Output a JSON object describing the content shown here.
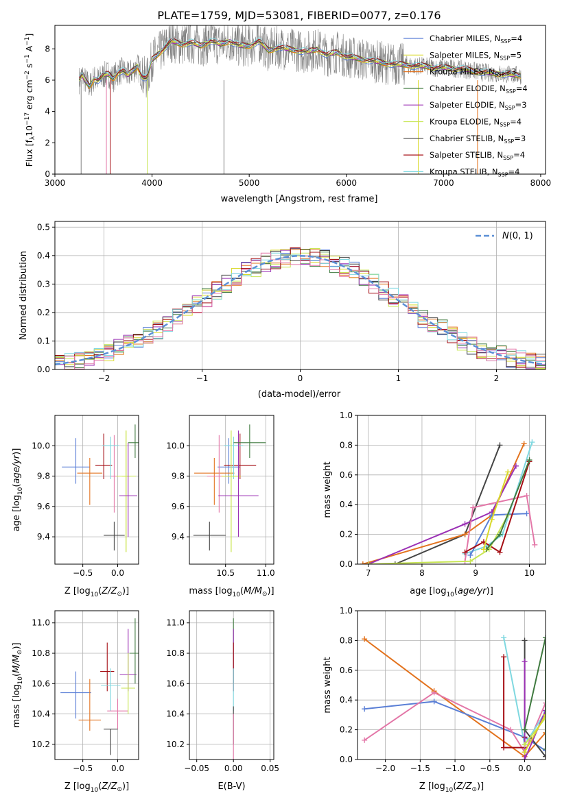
{
  "figure_title": "PLATE=1759, MJD=53081, FIBERID=0077, z=0.176",
  "colors": {
    "chabrier_miles": "#5a7fd6",
    "salpeter_miles": "#d9d92a",
    "kroupa_miles": "#e3731e",
    "chabrier_elodie": "#3f7a3f",
    "salpeter_elodie": "#9b30b5",
    "kroupa_elodie": "#c8e654",
    "chabrier_stelib": "#444444",
    "salpeter_stelib": "#a50f15",
    "kroupa_stelib": "#7fd8e0",
    "extra_pink": "#e377a8",
    "data_grey": "#808080",
    "gauss": "#5b8fd6"
  },
  "chart_data": [
    {
      "id": "spectrum",
      "type": "line",
      "xlabel": "wavelength [Angstrom, rest frame]",
      "ylabel": "Flux [f_λ 10^-17 erg cm^-2 s^-1 A^-1]",
      "xlim": [
        3000,
        8050
      ],
      "ylim": [
        0,
        9.5
      ],
      "xticks": [
        "3000",
        "4000",
        "5000",
        "6000",
        "7000",
        "8000"
      ],
      "yticks": [
        "0",
        "2",
        "4",
        "6",
        "8"
      ],
      "legend_position": "right",
      "legend": [
        {
          "label": "Chabrier MILES, N",
          "sub": "SSP",
          "tail": "=4"
        },
        {
          "label": "Salpeter MILES, N",
          "sub": "SSP",
          "tail": "=5"
        },
        {
          "label": "Kroupa MILES, N",
          "sub": "SSP",
          "tail": "=3"
        },
        {
          "label": "Chabrier ELODIE, N",
          "sub": "SSP",
          "tail": "=4"
        },
        {
          "label": "Salpeter ELODIE, N",
          "sub": "SSP",
          "tail": "=3"
        },
        {
          "label": "Kroupa ELODIE, N",
          "sub": "SSP",
          "tail": "=4"
        },
        {
          "label": "Chabrier STELIB, N",
          "sub": "SSP",
          "tail": "=3"
        },
        {
          "label": "Salpeter STELIB, N",
          "sub": "SSP",
          "tail": "=4"
        },
        {
          "label": "Kroupa STELIB, N",
          "sub": "SSP",
          "tail": "=4"
        }
      ],
      "model_curve": {
        "x": [
          3240,
          3280,
          3320,
          3360,
          3400,
          3450,
          3500,
          3550,
          3600,
          3650,
          3700,
          3750,
          3800,
          3850,
          3900,
          3950,
          4000,
          4100,
          4200,
          4300,
          4400,
          4500,
          4600,
          4700,
          4800,
          4900,
          5000,
          5100,
          5200,
          5300,
          5400,
          5500,
          5600,
          5700,
          5800,
          5900,
          6000,
          6100,
          6200,
          6300,
          6400,
          6500,
          6600,
          6700,
          6800,
          6900,
          7000,
          7200,
          7400,
          7600,
          7800
        ],
        "y": [
          5.9,
          6.3,
          5.9,
          5.6,
          6.1,
          6.0,
          6.3,
          6.4,
          6.1,
          6.5,
          6.6,
          6.3,
          6.6,
          6.9,
          6.2,
          6.1,
          7.3,
          7.9,
          8.5,
          8.3,
          8.4,
          8.2,
          8.5,
          8.3,
          8.5,
          8.2,
          8.2,
          8.5,
          7.9,
          8.1,
          8.0,
          7.9,
          7.8,
          8.0,
          7.6,
          7.8,
          7.5,
          7.4,
          7.3,
          7.2,
          7.1,
          7.0,
          7.0,
          6.9,
          6.9,
          6.8,
          6.8,
          6.7,
          6.5,
          6.4,
          6.3
        ]
      }
    },
    {
      "id": "residuals",
      "type": "line",
      "xlabel": "(data-model)/error",
      "ylabel": "Normed distribution",
      "xlim": [
        -2.5,
        2.5
      ],
      "ylim": [
        0,
        0.52
      ],
      "xticks": [
        "−2",
        "−1",
        "0",
        "1",
        "2"
      ],
      "yticks": [
        "0.0",
        "0.1",
        "0.2",
        "0.3",
        "0.4",
        "0.5"
      ],
      "legend": "N(0,1)",
      "legend_position": "top-right",
      "grid": true
    },
    {
      "id": "age_vs_Z",
      "type": "scatter",
      "xlabel": "Z [log10(Z/Z⊙)]",
      "ylabel": "age [log10(age/yr)]",
      "xlim": [
        -0.9,
        0.3
      ],
      "ylim": [
        9.22,
        10.2
      ],
      "xticks": [
        "−0.5",
        "0.0"
      ],
      "yticks": [
        "9.4",
        "9.6",
        "9.8",
        "10.0"
      ],
      "grid": true,
      "points": [
        {
          "series": "chabrier_miles",
          "x": -0.6,
          "y": 9.86,
          "xerr": 0.2,
          "yerr": [
            9.75,
            10.05
          ]
        },
        {
          "series": "kroupa_miles",
          "x": -0.4,
          "y": 9.82,
          "xerr": 0.18,
          "yerr": [
            9.61,
            9.92
          ]
        },
        {
          "series": "salpeter_stelib",
          "x": -0.2,
          "y": 9.87,
          "xerr": 0.12,
          "yerr": [
            9.78,
            10.08
          ]
        },
        {
          "series": "extra_pink",
          "x": -0.05,
          "y": 9.8,
          "xerr": 0.06,
          "yerr": [
            9.56,
            10.07
          ]
        },
        {
          "series": "kroupa_stelib",
          "x": -0.1,
          "y": 10.0,
          "xerr": 0.12,
          "yerr": [
            9.78,
            10.06
          ]
        },
        {
          "series": "salpeter_miles",
          "x": 0.12,
          "y": 9.8,
          "xerr": 0.06,
          "yerr": [
            9.3,
            10.1
          ]
        },
        {
          "series": "kroupa_elodie",
          "x": 0.12,
          "y": 9.8,
          "xerr": 0.14,
          "yerr": [
            9.3,
            10.1
          ]
        },
        {
          "series": "salpeter_elodie",
          "x": 0.15,
          "y": 9.67,
          "xerr": 0.13,
          "yerr": [
            9.4,
            10.02
          ]
        },
        {
          "series": "chabrier_elodie",
          "x": 0.25,
          "y": 10.02,
          "xerr": 0.1,
          "yerr": [
            9.92,
            10.14
          ]
        },
        {
          "series": "chabrier_stelib",
          "x": -0.05,
          "y": 9.41,
          "xerr": 0.15,
          "yerr": [
            9.31,
            9.5
          ]
        }
      ]
    },
    {
      "id": "age_vs_mass",
      "type": "scatter",
      "xlabel": "mass [log10(M/M⊙)]",
      "ylabel": "",
      "xlim": [
        10.05,
        11.1
      ],
      "ylim": [
        9.22,
        10.2
      ],
      "xticks": [
        "10.5",
        "11.0"
      ],
      "yticks": [
        "9.4",
        "9.6",
        "9.8",
        "10.0"
      ],
      "grid": true,
      "points": [
        {
          "series": "chabrier_miles",
          "x": 10.54,
          "y": 9.86,
          "xerr": 0.14,
          "yerr": [
            9.75,
            10.05
          ]
        },
        {
          "series": "kroupa_miles",
          "x": 10.36,
          "y": 9.82,
          "xerr": 0.25,
          "yerr": [
            9.61,
            9.92
          ]
        },
        {
          "series": "salpeter_stelib",
          "x": 10.68,
          "y": 9.87,
          "xerr": 0.2,
          "yerr": [
            9.78,
            10.08
          ]
        },
        {
          "series": "extra_pink",
          "x": 10.42,
          "y": 9.8,
          "xerr": 0.15,
          "yerr": [
            9.56,
            10.07
          ]
        },
        {
          "series": "kroupa_stelib",
          "x": 10.6,
          "y": 10.0,
          "xerr": 0.12,
          "yerr": [
            9.78,
            10.06
          ]
        },
        {
          "series": "salpeter_miles",
          "x": 10.57,
          "y": 9.8,
          "xerr": 0.12,
          "yerr": [
            9.3,
            10.1
          ]
        },
        {
          "series": "kroupa_elodie",
          "x": 10.57,
          "y": 9.8,
          "xerr": 0.1,
          "yerr": [
            9.3,
            10.1
          ]
        },
        {
          "series": "salpeter_elodie",
          "x": 10.66,
          "y": 9.67,
          "xerr": 0.25,
          "yerr": [
            9.4,
            10.1
          ]
        },
        {
          "series": "chabrier_elodie",
          "x": 10.8,
          "y": 10.02,
          "xerr": 0.2,
          "yerr": [
            9.92,
            10.14
          ]
        },
        {
          "series": "chabrier_stelib",
          "x": 10.3,
          "y": 9.41,
          "xerr": 0.2,
          "yerr": [
            9.31,
            9.5
          ]
        }
      ]
    },
    {
      "id": "mass_weight_vs_age",
      "type": "line",
      "xlabel": "age [log10(age/yr)]",
      "ylabel": "mass weight",
      "xlim": [
        6.8,
        10.3
      ],
      "ylim": [
        0,
        1.0
      ],
      "xticks": [
        "7",
        "8",
        "9",
        "10"
      ],
      "yticks": [
        "0.0",
        "0.2",
        "0.4",
        "0.6",
        "0.8",
        "1.0"
      ],
      "grid": true,
      "series": [
        {
          "name": "chabrier_stelib",
          "x": [
            7.5,
            8.8,
            9.45
          ],
          "y": [
            0.0,
            0.2,
            0.8
          ]
        },
        {
          "name": "kroupa_miles",
          "x": [
            6.9,
            8.8,
            9.3,
            9.9
          ],
          "y": [
            0.0,
            0.2,
            0.33,
            0.81
          ]
        },
        {
          "name": "salpeter_elodie",
          "x": [
            7.0,
            8.8,
            9.3,
            9.75
          ],
          "y": [
            0.0,
            0.27,
            0.35,
            0.66
          ]
        },
        {
          "name": "kroupa_stelib",
          "x": [
            8.8,
            9.2,
            9.5,
            10.05
          ],
          "y": [
            0.07,
            0.12,
            0.2,
            0.82
          ]
        },
        {
          "name": "chabrier_miles",
          "x": [
            8.9,
            9.3,
            9.95
          ],
          "y": [
            0.06,
            0.33,
            0.34
          ]
        },
        {
          "name": "extra_pink",
          "x": [
            8.8,
            8.95,
            9.95,
            10.1
          ],
          "y": [
            0.02,
            0.38,
            0.46,
            0.13
          ]
        },
        {
          "name": "salpeter_stelib",
          "x": [
            8.8,
            9.15,
            9.45,
            10.0
          ],
          "y": [
            0.08,
            0.15,
            0.08,
            0.69
          ]
        },
        {
          "name": "kroupa_elodie",
          "x": [
            7.0,
            8.9,
            9.25,
            9.6
          ],
          "y": [
            0.0,
            0.02,
            0.1,
            0.33
          ]
        },
        {
          "name": "chabrier_elodie",
          "x": [
            9.2,
            9.45,
            10.0
          ],
          "y": [
            0.1,
            0.2,
            0.7
          ]
        },
        {
          "name": "salpeter_miles",
          "x": [
            9.15,
            9.3,
            9.6
          ],
          "y": [
            0.1,
            0.3,
            0.62
          ]
        }
      ]
    },
    {
      "id": "mass_vs_Z",
      "type": "scatter",
      "xlabel": "Z [log10(Z/Z⊙)]",
      "ylabel": "mass [log10(M/M⊙)]",
      "xlim": [
        -0.9,
        0.3
      ],
      "ylim": [
        10.1,
        11.08
      ],
      "xticks": [
        "−0.5",
        "0.0"
      ],
      "yticks": [
        "10.2",
        "10.4",
        "10.6",
        "10.8",
        "11.0"
      ],
      "grid": true,
      "points": [
        {
          "series": "chabrier_miles",
          "x": -0.6,
          "y": 10.54,
          "xerr": 0.22,
          "yerr": [
            10.37,
            10.68
          ]
        },
        {
          "series": "kroupa_miles",
          "x": -0.4,
          "y": 10.36,
          "xerr": 0.16,
          "yerr": [
            10.29,
            10.63
          ]
        },
        {
          "series": "salpeter_stelib",
          "x": -0.15,
          "y": 10.68,
          "xerr": 0.1,
          "yerr": [
            10.55,
            10.87
          ]
        },
        {
          "series": "kroupa_stelib",
          "x": -0.1,
          "y": 10.59,
          "xerr": 0.14,
          "yerr": [
            10.42,
            10.7
          ]
        },
        {
          "series": "extra_pink",
          "x": 0.0,
          "y": 10.42,
          "xerr": 0.15,
          "yerr": [
            10.3,
            10.5
          ]
        },
        {
          "series": "salpeter_elodie",
          "x": 0.15,
          "y": 10.66,
          "xerr": 0.12,
          "yerr": [
            10.55,
            10.96
          ]
        },
        {
          "series": "kroupa_elodie",
          "x": 0.15,
          "y": 10.57,
          "xerr": 0.1,
          "yerr": [
            10.4,
            10.8
          ]
        },
        {
          "series": "chabrier_elodie",
          "x": 0.25,
          "y": 10.8,
          "xerr": 0.08,
          "yerr": [
            10.6,
            11.03
          ]
        },
        {
          "series": "chabrier_stelib",
          "x": -0.1,
          "y": 10.3,
          "xerr": 0.1,
          "yerr": [
            10.13,
            10.3
          ]
        }
      ]
    },
    {
      "id": "mass_vs_ebv",
      "type": "scatter",
      "xlabel": "E(B-V)",
      "ylabel": "",
      "xlim": [
        -0.06,
        0.055
      ],
      "ylim": [
        10.1,
        11.08
      ],
      "xticks": [
        "−0.05",
        "0.00",
        "0.05"
      ],
      "yticks": [
        "10.2",
        "10.4",
        "10.6",
        "10.8",
        "11.0"
      ],
      "grid": true,
      "points": [
        {
          "series": "chabrier_elodie",
          "x": 0.0,
          "y": 10.8,
          "xerr": 0.0,
          "yerr": [
            10.6,
            11.03
          ]
        },
        {
          "series": "salpeter_elodie",
          "x": 0.0,
          "y": 10.7,
          "xerr": 0.0,
          "yerr": [
            10.55,
            10.96
          ]
        },
        {
          "series": "salpeter_stelib",
          "x": 0.0,
          "y": 10.68,
          "xerr": 0.0,
          "yerr": [
            10.55,
            10.87
          ]
        },
        {
          "series": "kroupa_stelib",
          "x": 0.0,
          "y": 10.55,
          "xerr": 0.0,
          "yerr": [
            10.42,
            10.7
          ]
        },
        {
          "series": "chabrier_stelib",
          "x": 0.0,
          "y": 10.3,
          "xerr": 0.0,
          "yerr": [
            10.2,
            10.45
          ]
        },
        {
          "series": "extra_pink",
          "x": 0.0,
          "y": 10.25,
          "xerr": 0.0,
          "yerr": [
            10.1,
            10.4
          ]
        }
      ]
    },
    {
      "id": "mass_weight_vs_Z",
      "type": "line",
      "xlabel": "Z [log10(Z/Z⊙)]",
      "ylabel": "mass weight",
      "xlim": [
        -2.4,
        0.3
      ],
      "ylim": [
        0,
        1.0
      ],
      "xticks": [
        "−2.0",
        "−1.5",
        "−1.0",
        "−0.5",
        "0.0"
      ],
      "yticks": [
        "0.0",
        "0.2",
        "0.4",
        "0.6",
        "0.8",
        "1.0"
      ],
      "grid": true,
      "series": [
        {
          "name": "kroupa_miles",
          "x": [
            -2.3,
            -1.3,
            0.0,
            0.3
          ],
          "y": [
            0.81,
            0.46,
            0.02,
            0.18
          ]
        },
        {
          "name": "chabrier_miles",
          "x": [
            -2.3,
            -1.3,
            0.0,
            0.3
          ],
          "y": [
            0.34,
            0.39,
            0.15,
            0.06
          ]
        },
        {
          "name": "extra_pink",
          "x": [
            -2.3,
            -1.3,
            -0.2,
            0.0,
            0.3
          ],
          "y": [
            0.13,
            0.45,
            0.2,
            0.05,
            0.38
          ]
        },
        {
          "name": "kroupa_stelib",
          "x": [
            -0.3,
            0.0,
            0.3
          ],
          "y": [
            0.82,
            0.1,
            0.32
          ]
        },
        {
          "name": "salpeter_stelib",
          "x": [
            -0.3,
            -0.3,
            0.0,
            0.0
          ],
          "y": [
            0.69,
            0.08,
            0.08,
            0.15
          ]
        },
        {
          "name": "chabrier_stelib",
          "x": [
            0.0,
            0.0,
            0.3
          ],
          "y": [
            0.8,
            0.2,
            0.02
          ]
        },
        {
          "name": "salpeter_elodie",
          "x": [
            0.0,
            0.0,
            0.3
          ],
          "y": [
            0.66,
            0.0,
            0.33
          ]
        },
        {
          "name": "chabrier_elodie",
          "x": [
            0.0,
            0.3,
            0.3
          ],
          "y": [
            0.2,
            0.82,
            0.07
          ]
        },
        {
          "name": "kroupa_elodie",
          "x": [
            0.0,
            0.3
          ],
          "y": [
            0.1,
            0.28
          ]
        },
        {
          "name": "salpeter_miles",
          "x": [
            0.0,
            0.3
          ],
          "y": [
            0.05,
            0.3
          ]
        }
      ]
    }
  ]
}
